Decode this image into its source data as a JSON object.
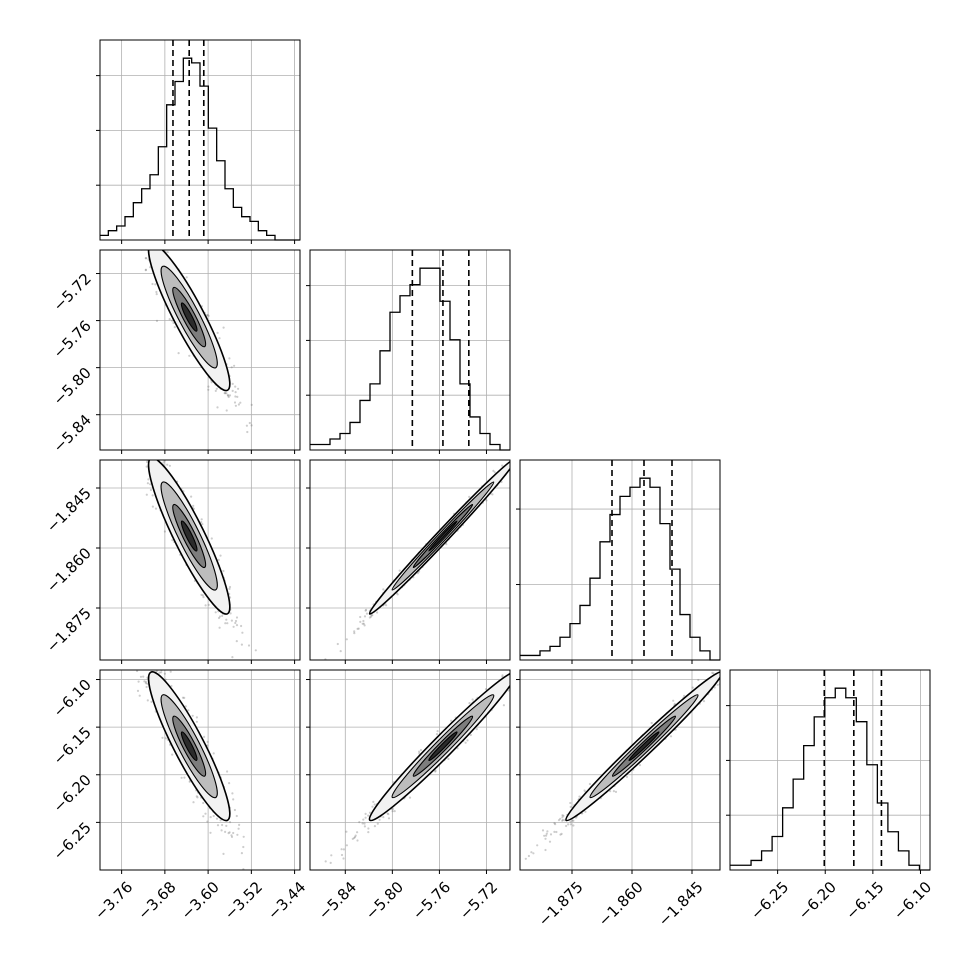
{
  "chart_data": {
    "type": "corner",
    "parameters": [
      {
        "index": 0,
        "range": [
          -3.8,
          -3.43
        ],
        "ticks": [
          -3.76,
          -3.68,
          -3.6,
          -3.52,
          -3.44
        ],
        "tick_labels": [
          "−3.76",
          "−3.68",
          "−3.60",
          "−3.52",
          "−3.44"
        ],
        "quantiles": [
          -3.665,
          -3.635,
          -3.608
        ]
      },
      {
        "index": 1,
        "range": [
          -5.87,
          -5.7
        ],
        "ticks": [
          -5.84,
          -5.8,
          -5.76,
          -5.72
        ],
        "tick_labels": [
          "−5.84",
          "−5.80",
          "−5.76",
          "−5.72"
        ],
        "quantiles": [
          -5.783,
          -5.757,
          -5.735
        ]
      },
      {
        "index": 2,
        "range": [
          -1.888,
          -1.838
        ],
        "ticks": [
          -1.875,
          -1.86,
          -1.845
        ],
        "tick_labels": [
          "−1.875",
          "−1.860",
          "−1.845"
        ],
        "quantiles": [
          -1.865,
          -1.857,
          -1.85
        ]
      },
      {
        "index": 3,
        "range": [
          -6.3,
          -6.09
        ],
        "ticks": [
          -6.25,
          -6.2,
          -6.15,
          -6.1
        ],
        "tick_labels": [
          "−6.25",
          "−6.20",
          "−6.15",
          "−6.10"
        ],
        "quantiles": [
          -6.201,
          -6.17,
          -6.141
        ]
      }
    ],
    "histograms": [
      {
        "param": 0,
        "counts": [
          1,
          2,
          3,
          5,
          8,
          11,
          14,
          20,
          29,
          34,
          39,
          38,
          33,
          24,
          17,
          11,
          7,
          5,
          4,
          2,
          1,
          0,
          0,
          0
        ]
      },
      {
        "param": 1,
        "counts": [
          1,
          1,
          2,
          3,
          5,
          9,
          12,
          18,
          25,
          28,
          30,
          33,
          33,
          27,
          20,
          12,
          6,
          3,
          1,
          0
        ]
      },
      {
        "param": 2,
        "counts": [
          1,
          1,
          2,
          3,
          5,
          8,
          12,
          18,
          26,
          32,
          36,
          38,
          40,
          38,
          30,
          20,
          10,
          5,
          2,
          0
        ]
      },
      {
        "param": 3,
        "counts": [
          1,
          1,
          2,
          4,
          7,
          13,
          19,
          26,
          32,
          36,
          38,
          36,
          31,
          22,
          14,
          8,
          4,
          1,
          0
        ]
      }
    ],
    "correlations": {
      "1_0": -0.93,
      "2_0": -0.93,
      "2_1": 0.995,
      "3_0": -0.93,
      "3_1": 0.985,
      "3_2": 0.99
    },
    "grid": true,
    "xlabel": "",
    "ylabel": "",
    "title": ""
  },
  "colors": {
    "line": "#000000",
    "points": "#6f6f6f",
    "grid": "#b0b0b0"
  }
}
